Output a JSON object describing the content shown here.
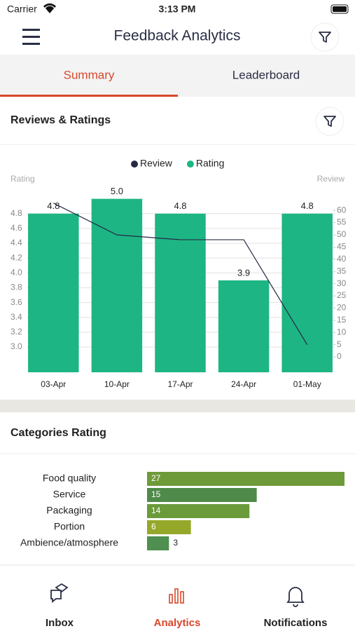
{
  "status_bar": {
    "carrier": "Carrier",
    "time": "3:13 PM"
  },
  "header": {
    "title": "Feedback Analytics"
  },
  "tabs": [
    "Summary",
    "Leaderboard"
  ],
  "sections": [
    "Reviews & Ratings",
    "Categories Rating"
  ],
  "chart_data": [
    {
      "type": "bar",
      "categories": [
        "03-Apr",
        "10-Apr",
        "17-Apr",
        "24-Apr",
        "01-May"
      ],
      "series": [
        {
          "name": "Review",
          "type": "line",
          "axis": "y2",
          "color": "#262a45",
          "values": [
            63,
            50,
            48,
            48,
            5
          ]
        },
        {
          "name": "Rating",
          "type": "bar",
          "color": "#1db584",
          "values": [
            4.8,
            5.0,
            4.8,
            3.9,
            4.8
          ],
          "value_labels": [
            "4.8",
            "5.0",
            "4.8",
            "3.9",
            "4.8"
          ]
        }
      ],
      "ylabel": "Rating",
      "y2label": "Review",
      "ylim": [
        2.66,
        5.1
      ],
      "yticks": [
        {
          "value": 3,
          "label": "3.0"
        },
        3.2,
        3.4,
        3.6,
        3.8,
        {
          "value": 4,
          "label": "4.0"
        },
        4.2,
        4.4,
        4.6,
        4.8
      ],
      "y2lim": [
        -6.3,
        67.8
      ],
      "y2ticks": [
        0,
        5,
        10,
        15,
        20,
        25,
        30,
        35,
        40,
        45,
        50,
        55,
        60
      ],
      "grid": true,
      "legend": "top"
    },
    {
      "type": "hbar",
      "categories": [
        "Food quality",
        "Service",
        "Packaging",
        "Portion",
        "Ambience/atmosphere"
      ],
      "values": [
        27,
        15,
        14,
        6,
        3
      ],
      "colors": [
        "#6e9a3a",
        "#4f8a4a",
        "#6a9a3a",
        "#96a82a",
        "#4f8f4f"
      ],
      "xlim": [
        0,
        27
      ]
    }
  ],
  "tab_bar": [
    "Inbox",
    "Analytics",
    "Notifications"
  ]
}
